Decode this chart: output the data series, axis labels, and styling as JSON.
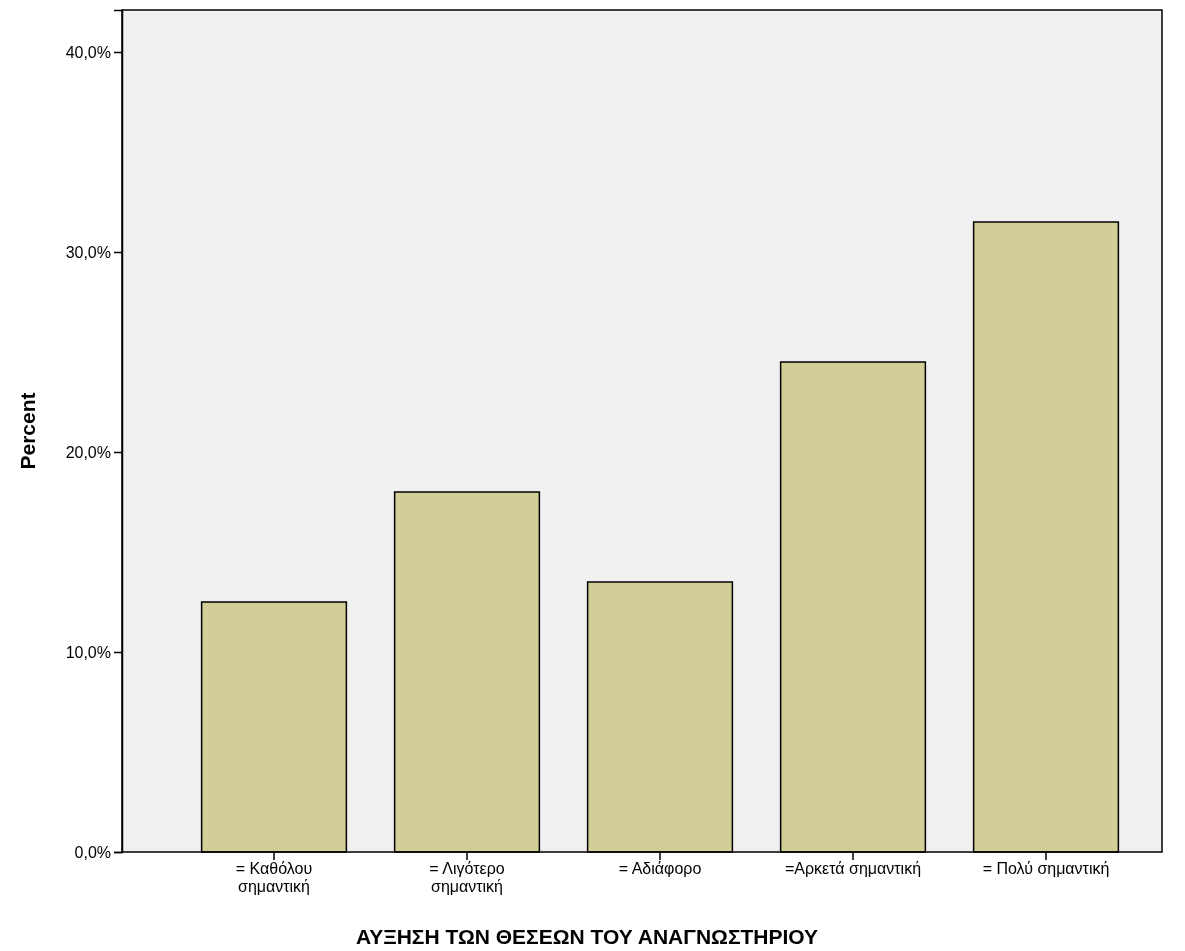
{
  "chart_data": {
    "type": "bar",
    "xlabel": "ΑΥΞΗΣΗ ΤΩΝ ΘΕΣΕΩΝ ΤΟΥ ΑΝΑΓΝΩΣΤΗΡΙΟΥ",
    "ylabel": "Percent",
    "categories": [
      "= Καθόλου σημαντική",
      "= Λιγότερο σημαντική",
      "= Αδιάφορο",
      "=Αρκετά σημαντική",
      "= Πολύ σημαντική"
    ],
    "values": [
      12.5,
      18.0,
      13.5,
      24.5,
      31.5
    ],
    "color": "#d3ce97",
    "ylim": [
      0,
      42.1
    ],
    "yticks": [
      {
        "value": 0,
        "label": "0,0%"
      },
      {
        "value": 10,
        "label": "10,0%"
      },
      {
        "value": 20,
        "label": "20,0%"
      },
      {
        "value": 30,
        "label": "30,0%"
      },
      {
        "value": 40,
        "label": "40,0%"
      }
    ],
    "grid": false
  }
}
